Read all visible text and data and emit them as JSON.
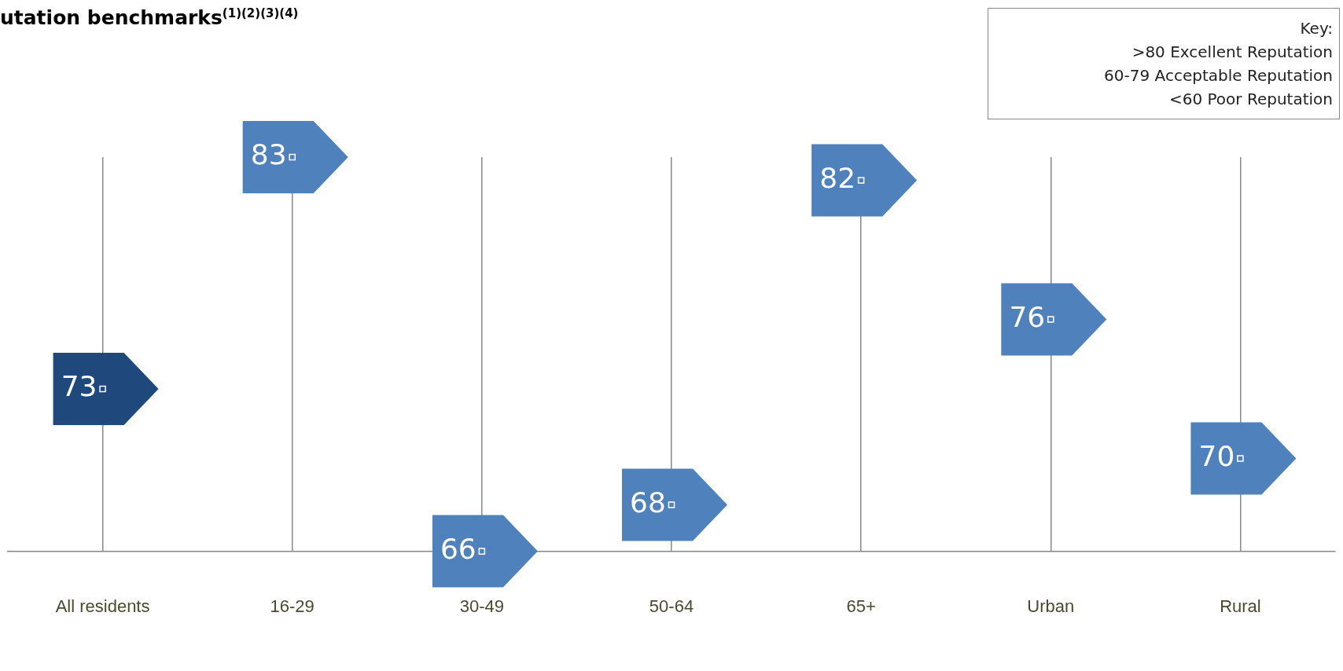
{
  "chart_data": {
    "type": "scatter",
    "title": "utation benchmarks$^{(1)(2)(3)(4)}$",
    "categories": [
      "All residents",
      "16-29",
      "30-49",
      "50-64",
      "65+",
      "Urban",
      "Rural"
    ],
    "values": [
      73,
      83,
      66,
      68,
      82,
      76,
      70
    ],
    "colors": [
      "#1f497d",
      "#4f81bd",
      "#4f81bd",
      "#4f81bd",
      "#4f81bd",
      "#4f81bd",
      "#4f81bd"
    ],
    "data_labels": true,
    "grid": "x",
    "legend": false,
    "annotations": [
      "Key:",
      ">80 Excellent Reputation",
      "60-79 Acceptable Reputation",
      "<60 Poor Reputation"
    ]
  }
}
